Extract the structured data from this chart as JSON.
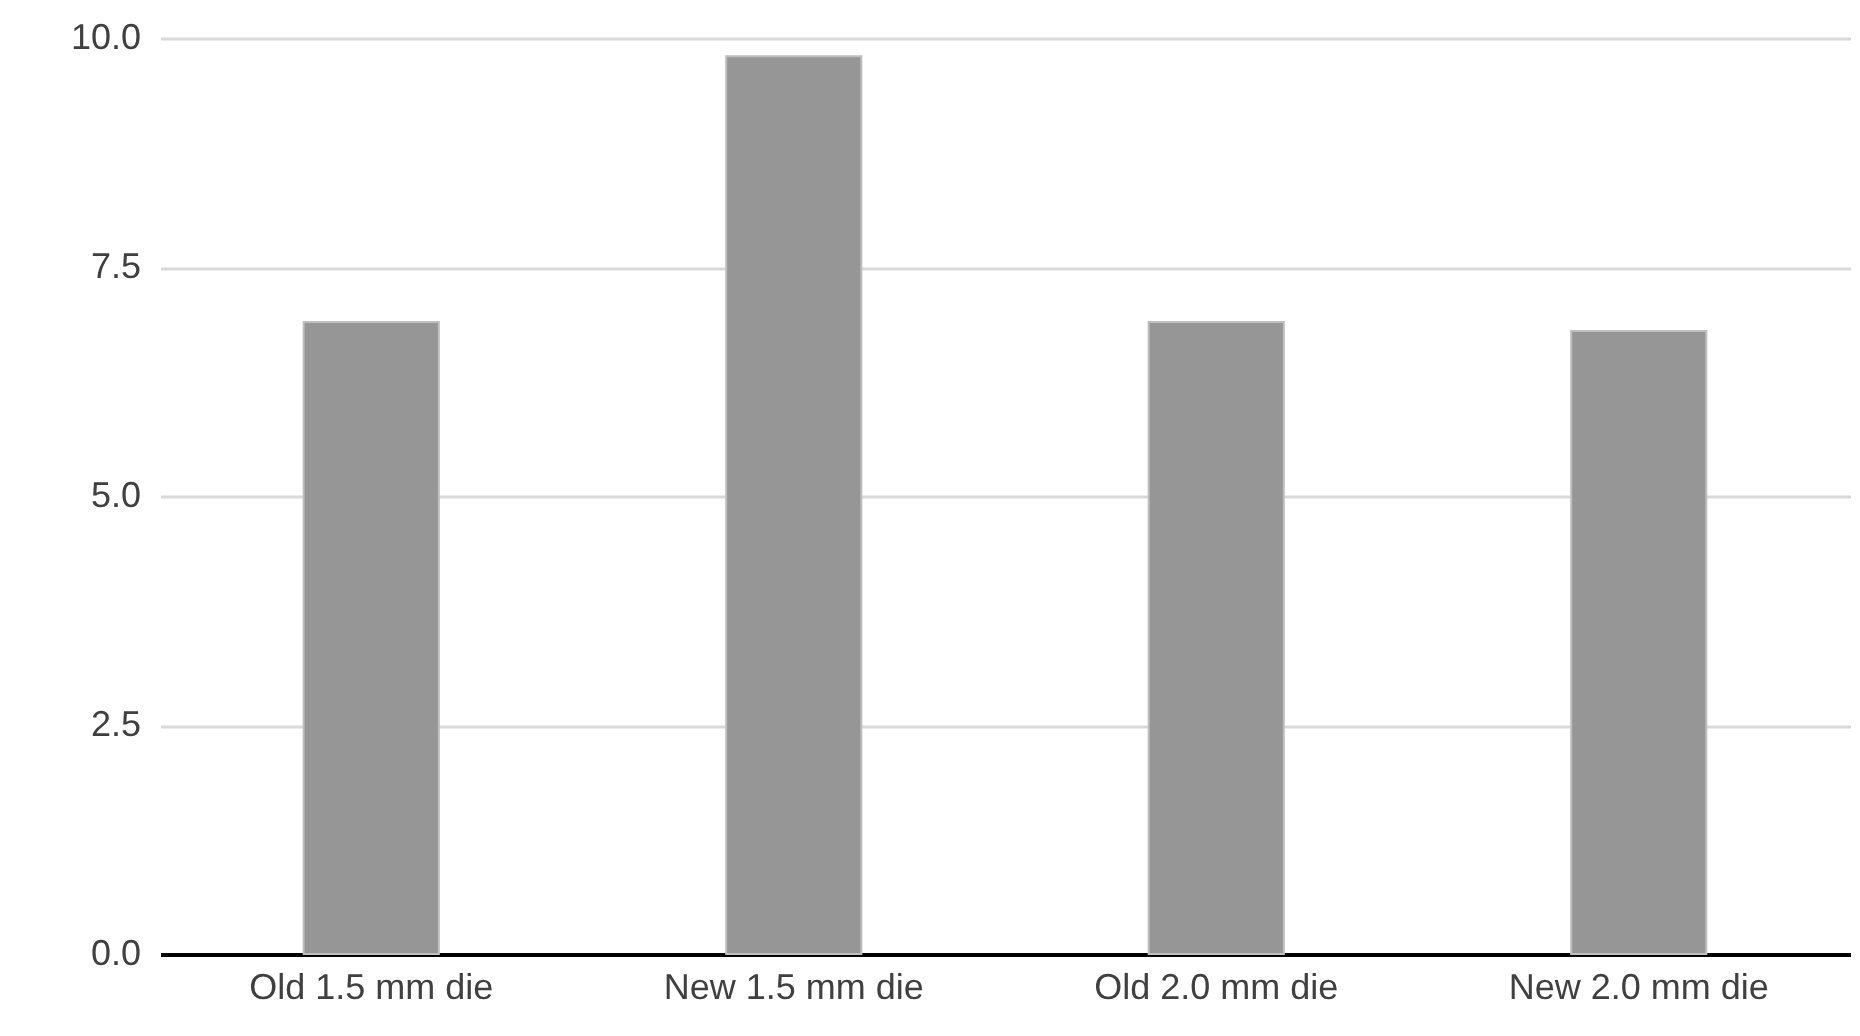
{
  "chart_data": {
    "type": "bar",
    "categories": [
      "Old 1.5 mm die",
      "New 1.5 mm die",
      "Old 2.0 mm die",
      "New 2.0 mm die"
    ],
    "values": [
      6.9,
      9.8,
      6.9,
      6.8
    ],
    "color": "#969696",
    "ylim": [
      0,
      10
    ],
    "yticks": [
      {
        "value": 0,
        "label": "0.0"
      },
      {
        "value": 2.5,
        "label": "2.5"
      },
      {
        "value": 5,
        "label": "5.0"
      },
      {
        "value": 7.5,
        "label": "7.5"
      },
      {
        "value": 10,
        "label": "10.0"
      }
    ],
    "grid": true
  }
}
